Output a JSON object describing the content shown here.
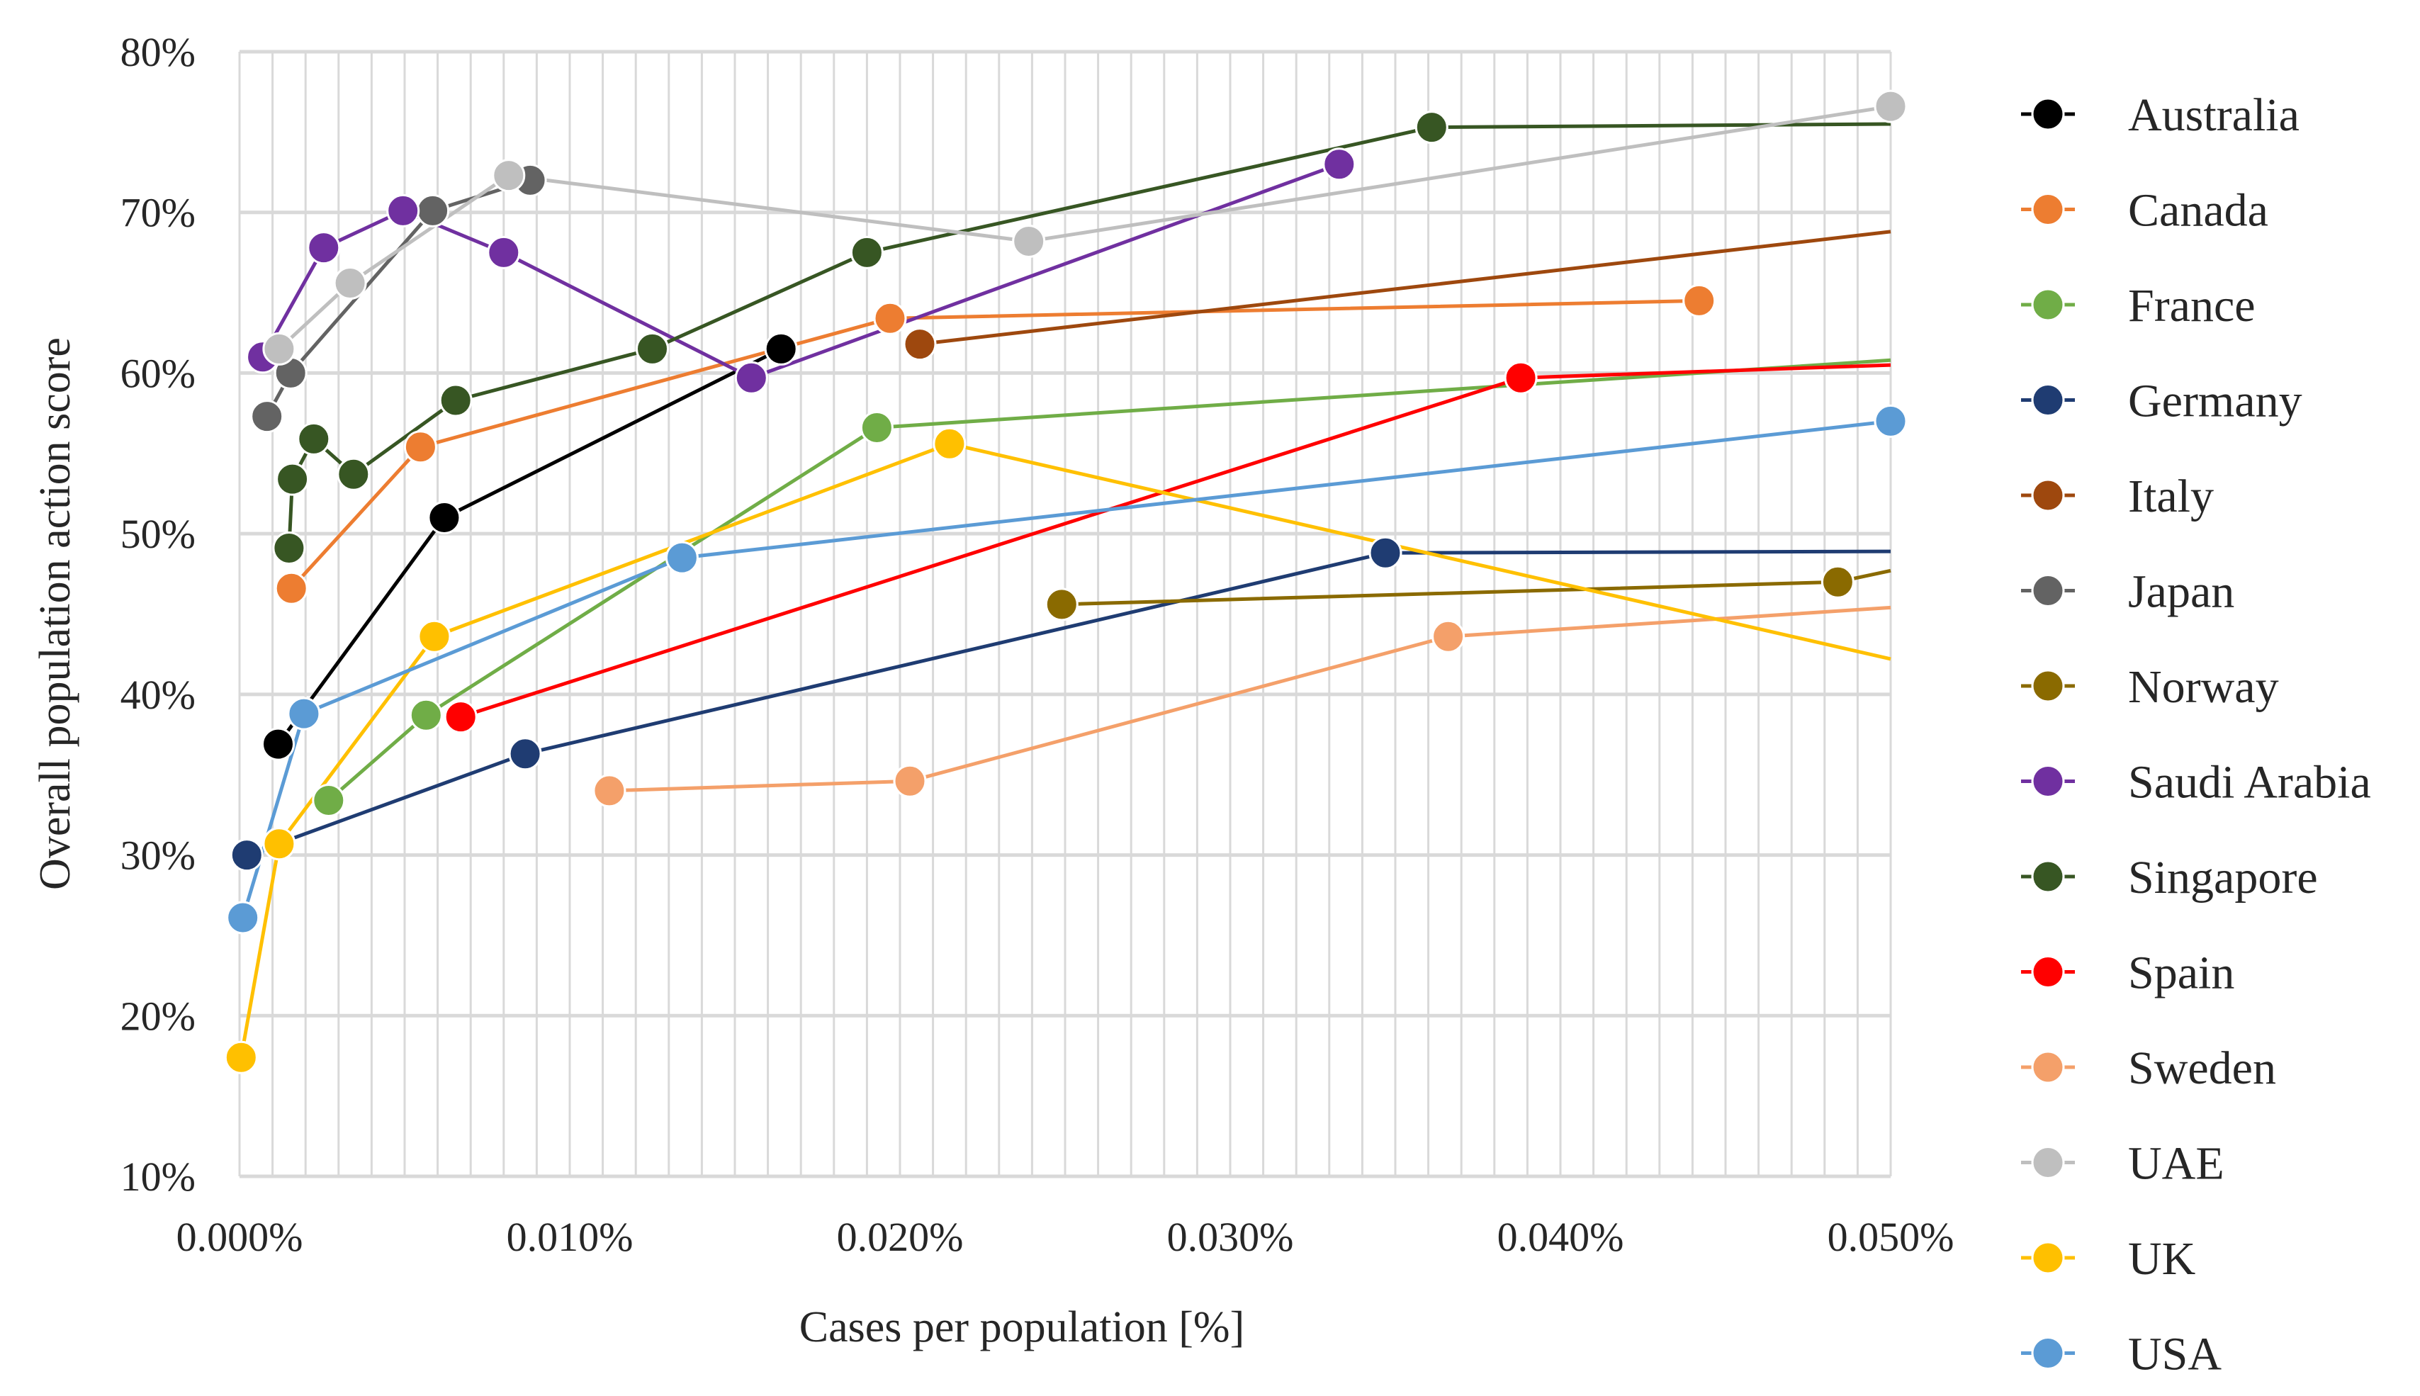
{
  "chart_data": {
    "type": "line",
    "xlabel": "Cases per population [%]",
    "ylabel": "Overall population action score",
    "xlim": [
      0,
      0.05
    ],
    "ylim": [
      10,
      80
    ],
    "x_ticks": [
      "0.000%",
      "0.010%",
      "0.020%",
      "0.030%",
      "0.040%",
      "0.050%"
    ],
    "y_ticks": [
      "10%",
      "20%",
      "30%",
      "40%",
      "50%",
      "60%",
      "70%",
      "80%"
    ],
    "legend_position": "right",
    "series": [
      {
        "name": "Australia",
        "color": "#000000",
        "points": [
          [
            0.00117,
            36.9
          ],
          [
            0.0062,
            51.0
          ],
          [
            0.0164,
            61.5
          ]
        ],
        "tail": null
      },
      {
        "name": "Canada",
        "color": "#ed7d31",
        "points": [
          [
            0.00157,
            46.6
          ],
          [
            0.00548,
            55.4
          ],
          [
            0.0197,
            63.4
          ],
          [
            0.0442,
            64.5
          ]
        ],
        "tail": null
      },
      {
        "name": "France",
        "color": "#70ad47",
        "points": [
          [
            0.0027,
            33.4
          ],
          [
            0.00565,
            38.7
          ],
          [
            0.0193,
            56.6
          ]
        ],
        "tail": [
          0.05,
          60.8
        ]
      },
      {
        "name": "Germany",
        "color": "#1f3c72",
        "points": [
          [
            0.00022,
            30.0
          ],
          [
            0.00865,
            36.3
          ],
          [
            0.0347,
            48.8
          ]
        ],
        "tail": [
          0.05,
          48.9
        ]
      },
      {
        "name": "Italy",
        "color": "#9e480e",
        "points": [
          [
            0.0206,
            61.8
          ]
        ],
        "tail": [
          0.05,
          68.8
        ]
      },
      {
        "name": "Japan",
        "color": "#636363",
        "points": [
          [
            0.00083,
            57.3
          ],
          [
            0.00155,
            60.0
          ],
          [
            0.00585,
            70.1
          ],
          [
            0.0088,
            72.0
          ]
        ],
        "tail": null
      },
      {
        "name": "Norway",
        "color": "#8a6a00",
        "points": [
          [
            0.0249,
            45.6
          ],
          [
            0.0484,
            47.0
          ]
        ],
        "tail": [
          0.05,
          47.7
        ]
      },
      {
        "name": "Saudi Arabia",
        "color": "#7030a0",
        "points": [
          [
            0.0007,
            61.0
          ],
          [
            0.00255,
            67.8
          ],
          [
            0.00495,
            70.1
          ],
          [
            0.008,
            67.5
          ],
          [
            0.0155,
            59.7
          ],
          [
            0.0333,
            73.0
          ]
        ],
        "tail": null
      },
      {
        "name": "Singapore",
        "color": "#375623",
        "points": [
          [
            0.0015,
            49.1
          ],
          [
            0.0016,
            53.4
          ],
          [
            0.00225,
            55.9
          ],
          [
            0.00345,
            53.7
          ],
          [
            0.00655,
            58.3
          ],
          [
            0.0125,
            61.5
          ],
          [
            0.019,
            67.5
          ],
          [
            0.0361,
            75.3
          ]
        ],
        "tail": [
          0.05,
          75.5
        ]
      },
      {
        "name": "Spain",
        "color": "#ff0000",
        "points": [
          [
            0.0067,
            38.6
          ],
          [
            0.0388,
            59.7
          ]
        ],
        "tail": [
          0.05,
          60.5
        ]
      },
      {
        "name": "Sweden",
        "color": "#f4a06a",
        "points": [
          [
            0.0112,
            34.0
          ],
          [
            0.0203,
            34.6
          ],
          [
            0.0366,
            43.6
          ]
        ],
        "tail": [
          0.05,
          45.4
        ]
      },
      {
        "name": "UAE",
        "color": "#bfbfbf",
        "points": [
          [
            0.0012,
            61.5
          ],
          [
            0.00335,
            65.6
          ],
          [
            0.00815,
            72.3
          ],
          [
            0.0239,
            68.2
          ],
          [
            0.05,
            76.6
          ]
        ],
        "tail": null
      },
      {
        "name": "UK",
        "color": "#ffc000",
        "points": [
          [
            5e-05,
            17.4
          ],
          [
            0.0012,
            30.7
          ],
          [
            0.0059,
            43.6
          ],
          [
            0.0215,
            55.6
          ]
        ],
        "tail": [
          0.05,
          42.2
        ]
      },
      {
        "name": "USA",
        "color": "#5b9bd5",
        "points": [
          [
            0.0001,
            26.1
          ],
          [
            0.00195,
            38.8
          ],
          [
            0.0134,
            48.5
          ],
          [
            0.05,
            57.0
          ]
        ],
        "tail": null
      }
    ]
  }
}
